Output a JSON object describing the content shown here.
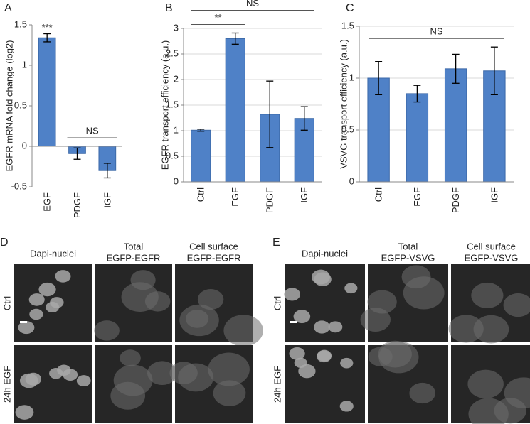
{
  "chart_data": [
    {
      "type": "bar",
      "panel": "A",
      "ylabel": "EGFR mRNA fold change (log2)",
      "categories": [
        "EGF",
        "PDGF",
        "IGF"
      ],
      "values": [
        1.34,
        -0.09,
        -0.3
      ],
      "errors": [
        0.05,
        0.07,
        0.09
      ],
      "color": "#4f81c7",
      "ylim": [
        -0.5,
        1.5
      ],
      "yticks": [
        -0.5,
        0,
        0.5,
        1,
        1.5
      ],
      "grid": false,
      "annotations": [
        {
          "text": "***",
          "categories": [
            0
          ]
        },
        {
          "text": "NS",
          "categories": [
            1,
            2
          ]
        }
      ]
    },
    {
      "type": "bar",
      "panel": "B",
      "ylabel": "EGFR transport efficiency (a.u.)",
      "categories": [
        "Ctrl",
        "EGF",
        "PDGF",
        "IGF"
      ],
      "values": [
        1.01,
        2.8,
        1.32,
        1.24
      ],
      "errors": [
        0.02,
        0.11,
        0.65,
        0.23
      ],
      "color": "#4f81c7",
      "ylim": [
        0,
        3
      ],
      "yticks": [
        0,
        0.5,
        1,
        1.5,
        2,
        2.5,
        3
      ],
      "grid": true,
      "annotations": [
        {
          "text": "**",
          "categories": [
            0,
            1
          ]
        },
        {
          "text": "NS",
          "categories": [
            0,
            3
          ]
        }
      ]
    },
    {
      "type": "bar",
      "panel": "C",
      "ylabel": "VSVG transport efficiency (a.u.)",
      "categories": [
        "Ctrl",
        "EGF",
        "PDGF",
        "IGF"
      ],
      "values": [
        1.0,
        0.85,
        1.09,
        1.07
      ],
      "errors": [
        0.16,
        0.08,
        0.14,
        0.23
      ],
      "color": "#4f81c7",
      "ylim": [
        0,
        1.5
      ],
      "yticks": [
        0,
        0.5,
        1,
        1.5
      ],
      "grid": true,
      "annotations": [
        {
          "text": "NS",
          "categories": [
            0,
            3
          ]
        }
      ]
    }
  ],
  "micro": [
    {
      "panel": "D",
      "columns": [
        [
          "Dapi-nuclei"
        ],
        [
          "Total",
          "EGFP-EGFR"
        ],
        [
          "Cell surface",
          "EGFP-EGFR"
        ]
      ],
      "rows": [
        "Ctrl",
        "24h EGF"
      ]
    },
    {
      "panel": "E",
      "columns": [
        [
          "Dapi-nuclei"
        ],
        [
          "Total",
          "EGFP-VSVG"
        ],
        [
          "Cell surface",
          "EGFP-VSVG"
        ]
      ],
      "rows": [
        "Ctrl",
        "24h EGF"
      ]
    }
  ]
}
